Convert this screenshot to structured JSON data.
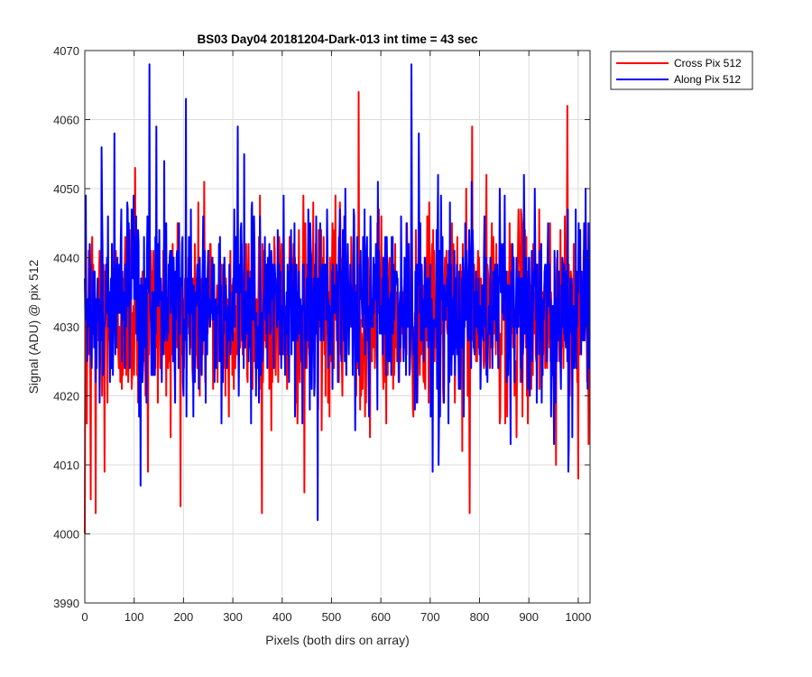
{
  "chart_data": {
    "type": "line",
    "title": "BS03 Day04 20181204-Dark-013 int time = 43 sec",
    "xlabel": "Pixels (both dirs on array)",
    "ylabel": "Signal (ADU) @ pix 512",
    "xlim": [
      0,
      1024
    ],
    "ylim": [
      3990,
      4070
    ],
    "xticks": [
      "0",
      "100",
      "200",
      "300",
      "400",
      "500",
      "600",
      "700",
      "800",
      "900",
      "1000"
    ],
    "yticks": [
      "3990",
      "4000",
      "4010",
      "4020",
      "4030",
      "4040",
      "4050",
      "4060",
      "4070"
    ],
    "grid": true,
    "legend_position": "outside-top-right",
    "x_range_note": "x = 0..1023, one value per pixel",
    "series": [
      {
        "name": "Cross Pix 512",
        "color": "#ff0000",
        "mean": 4032,
        "sigma": 7,
        "min": 4000,
        "max": 4064,
        "notable_points": [
          [
            0,
            4000
          ],
          [
            4,
            4016
          ],
          [
            12,
            4005
          ],
          [
            22,
            4003
          ],
          [
            40,
            4009
          ],
          [
            102,
            4053
          ],
          [
            128,
            4009
          ],
          [
            242,
            4051
          ],
          [
            355,
            4049
          ],
          [
            445,
            4006
          ],
          [
            555,
            4064
          ],
          [
            780,
            4003
          ],
          [
            785,
            4059
          ],
          [
            955,
            4010
          ],
          [
            978,
            4062
          ],
          [
            1000,
            4008
          ]
        ]
      },
      {
        "name": "Along Pix 512",
        "color": "#0000ff",
        "mean": 4033,
        "sigma": 7,
        "min": 4002,
        "max": 4068,
        "notable_points": [
          [
            2,
            4049
          ],
          [
            34,
            4056
          ],
          [
            60,
            4058
          ],
          [
            113,
            4007
          ],
          [
            131,
            4068
          ],
          [
            145,
            4059
          ],
          [
            205,
            4063
          ],
          [
            310,
            4059
          ],
          [
            472,
            4002
          ],
          [
            528,
            4050
          ],
          [
            662,
            4068
          ],
          [
            705,
            4009
          ],
          [
            980,
            4009
          ],
          [
            1015,
            4050
          ]
        ]
      }
    ]
  }
}
